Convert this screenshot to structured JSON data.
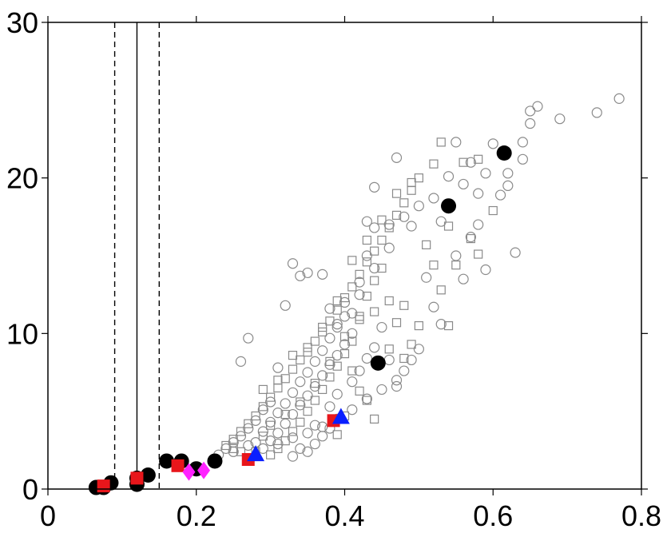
{
  "chart_data": {
    "type": "scatter",
    "xlim": [
      0,
      0.8
    ],
    "ylim": [
      0,
      30
    ],
    "x_ticks": [
      "0",
      "0.2",
      "0.4",
      "0.6",
      "0.8"
    ],
    "y_ticks": [
      "0",
      "10",
      "20",
      "30"
    ],
    "x_tick_values": [
      0,
      0.2,
      0.4,
      0.6,
      0.8
    ],
    "y_tick_values": [
      0,
      10,
      20,
      30
    ],
    "grid": false,
    "vertical_lines": [
      {
        "x": 0.09,
        "style": "dashed"
      },
      {
        "x": 0.12,
        "style": "solid"
      },
      {
        "x": 0.15,
        "style": "dashed"
      }
    ],
    "series": [
      {
        "marker": "open-circle",
        "color": "#8a8a8a",
        "points": [
          [
            0.23,
            2.2
          ],
          [
            0.24,
            2.6
          ],
          [
            0.25,
            3.0
          ],
          [
            0.26,
            3.4
          ],
          [
            0.27,
            3.9
          ],
          [
            0.28,
            4.4
          ],
          [
            0.29,
            5.1
          ],
          [
            0.3,
            5.6
          ],
          [
            0.3,
            3.1
          ],
          [
            0.31,
            3.6
          ],
          [
            0.32,
            4.2
          ],
          [
            0.33,
            4.8
          ],
          [
            0.34,
            5.4
          ],
          [
            0.35,
            6.0
          ],
          [
            0.36,
            6.6
          ],
          [
            0.37,
            7.3
          ],
          [
            0.38,
            8.0
          ],
          [
            0.39,
            8.6
          ],
          [
            0.4,
            9.3
          ],
          [
            0.41,
            10.0
          ],
          [
            0.26,
            8.2
          ],
          [
            0.27,
            9.7
          ],
          [
            0.31,
            7.8
          ],
          [
            0.32,
            11.8
          ],
          [
            0.33,
            14.5
          ],
          [
            0.34,
            13.7
          ],
          [
            0.35,
            13.9
          ],
          [
            0.37,
            13.8
          ],
          [
            0.38,
            11.6
          ],
          [
            0.39,
            10.6
          ],
          [
            0.4,
            12.0
          ],
          [
            0.41,
            11.3
          ],
          [
            0.42,
            12.5
          ],
          [
            0.42,
            13.3
          ],
          [
            0.43,
            15.0
          ],
          [
            0.44,
            14.2
          ],
          [
            0.43,
            17.2
          ],
          [
            0.44,
            16.8
          ],
          [
            0.44,
            19.4
          ],
          [
            0.46,
            17.0
          ],
          [
            0.46,
            15.5
          ],
          [
            0.47,
            21.3
          ],
          [
            0.48,
            17.5
          ],
          [
            0.49,
            16.9
          ],
          [
            0.5,
            18.2
          ],
          [
            0.51,
            13.6
          ],
          [
            0.52,
            18.7
          ],
          [
            0.53,
            17.2
          ],
          [
            0.54,
            20.1
          ],
          [
            0.55,
            22.3
          ],
          [
            0.56,
            19.6
          ],
          [
            0.57,
            21.0
          ],
          [
            0.57,
            16.2
          ],
          [
            0.58,
            19.0
          ],
          [
            0.59,
            20.3
          ],
          [
            0.6,
            22.2
          ],
          [
            0.62,
            20.3
          ],
          [
            0.63,
            15.2
          ],
          [
            0.64,
            21.2
          ],
          [
            0.64,
            22.3
          ],
          [
            0.65,
            24.3
          ],
          [
            0.65,
            23.5
          ],
          [
            0.66,
            24.6
          ],
          [
            0.69,
            23.8
          ],
          [
            0.74,
            24.2
          ],
          [
            0.77,
            25.1
          ],
          [
            0.35,
            2.4
          ],
          [
            0.36,
            2.9
          ],
          [
            0.37,
            3.4
          ],
          [
            0.38,
            3.9
          ],
          [
            0.33,
            2.1
          ],
          [
            0.34,
            2.6
          ],
          [
            0.36,
            4.1
          ],
          [
            0.38,
            5.3
          ],
          [
            0.39,
            6.1
          ],
          [
            0.41,
            6.9
          ],
          [
            0.42,
            7.6
          ],
          [
            0.43,
            8.4
          ],
          [
            0.44,
            9.1
          ],
          [
            0.45,
            10.4
          ],
          [
            0.46,
            8.3
          ],
          [
            0.47,
            6.6
          ],
          [
            0.28,
            3.0
          ],
          [
            0.29,
            3.7
          ],
          [
            0.3,
            4.3
          ],
          [
            0.31,
            4.9
          ],
          [
            0.32,
            5.5
          ],
          [
            0.33,
            6.2
          ],
          [
            0.34,
            6.9
          ],
          [
            0.35,
            7.5
          ],
          [
            0.36,
            8.2
          ],
          [
            0.37,
            8.9
          ],
          [
            0.38,
            9.7
          ],
          [
            0.39,
            10.4
          ],
          [
            0.4,
            11.1
          ],
          [
            0.25,
            2.4
          ],
          [
            0.27,
            2.8
          ],
          [
            0.29,
            2.6
          ],
          [
            0.31,
            2.9
          ],
          [
            0.33,
            3.3
          ],
          [
            0.35,
            3.6
          ],
          [
            0.37,
            4.0
          ],
          [
            0.39,
            4.5
          ],
          [
            0.41,
            5.1
          ],
          [
            0.43,
            5.8
          ],
          [
            0.45,
            6.4
          ],
          [
            0.47,
            7.0
          ],
          [
            0.48,
            7.6
          ],
          [
            0.49,
            8.3
          ],
          [
            0.5,
            9.0
          ],
          [
            0.52,
            11.7
          ],
          [
            0.53,
            10.6
          ],
          [
            0.55,
            15.0
          ],
          [
            0.56,
            13.5
          ],
          [
            0.58,
            17.0
          ],
          [
            0.59,
            14.1
          ],
          [
            0.61,
            18.9
          ],
          [
            0.62,
            19.5
          ]
        ]
      },
      {
        "marker": "open-square",
        "color": "#8a8a8a",
        "points": [
          [
            0.24,
            2.8
          ],
          [
            0.25,
            3.2
          ],
          [
            0.26,
            3.7
          ],
          [
            0.27,
            4.2
          ],
          [
            0.28,
            4.7
          ],
          [
            0.29,
            5.3
          ],
          [
            0.3,
            5.9
          ],
          [
            0.31,
            6.5
          ],
          [
            0.32,
            7.1
          ],
          [
            0.33,
            7.7
          ],
          [
            0.34,
            8.3
          ],
          [
            0.35,
            8.8
          ],
          [
            0.36,
            9.5
          ],
          [
            0.37,
            10.1
          ],
          [
            0.38,
            10.8
          ],
          [
            0.39,
            11.5
          ],
          [
            0.4,
            12.3
          ],
          [
            0.41,
            13.0
          ],
          [
            0.42,
            13.8
          ],
          [
            0.43,
            14.6
          ],
          [
            0.44,
            15.3
          ],
          [
            0.45,
            16.0
          ],
          [
            0.46,
            16.8
          ],
          [
            0.47,
            17.6
          ],
          [
            0.48,
            18.4
          ],
          [
            0.49,
            19.2
          ],
          [
            0.5,
            20.0
          ],
          [
            0.52,
            20.9
          ],
          [
            0.53,
            22.3
          ],
          [
            0.56,
            21.0
          ],
          [
            0.58,
            21.2
          ],
          [
            0.6,
            17.9
          ],
          [
            0.58,
            15.1
          ],
          [
            0.57,
            16.1
          ],
          [
            0.55,
            14.4
          ],
          [
            0.54,
            16.9
          ],
          [
            0.52,
            14.4
          ],
          [
            0.5,
            10.5
          ],
          [
            0.49,
            9.3
          ],
          [
            0.48,
            11.8
          ],
          [
            0.47,
            10.7
          ],
          [
            0.46,
            12.1
          ],
          [
            0.45,
            14.2
          ],
          [
            0.44,
            13.4
          ],
          [
            0.43,
            12.4
          ],
          [
            0.42,
            10.9
          ],
          [
            0.41,
            9.5
          ],
          [
            0.4,
            8.7
          ],
          [
            0.39,
            7.9
          ],
          [
            0.38,
            7.2
          ],
          [
            0.37,
            6.4
          ],
          [
            0.36,
            5.7
          ],
          [
            0.35,
            5.0
          ],
          [
            0.34,
            4.3
          ],
          [
            0.33,
            3.7
          ],
          [
            0.32,
            3.1
          ],
          [
            0.31,
            2.6
          ],
          [
            0.3,
            2.2
          ],
          [
            0.28,
            2.4
          ],
          [
            0.27,
            2.0
          ],
          [
            0.29,
            6.4
          ],
          [
            0.31,
            7.0
          ],
          [
            0.33,
            8.6
          ],
          [
            0.35,
            9.1
          ],
          [
            0.37,
            10.4
          ],
          [
            0.39,
            12.1
          ],
          [
            0.41,
            14.7
          ],
          [
            0.43,
            16.0
          ],
          [
            0.45,
            17.3
          ],
          [
            0.47,
            19.0
          ],
          [
            0.49,
            19.7
          ],
          [
            0.51,
            15.7
          ],
          [
            0.53,
            12.8
          ],
          [
            0.54,
            10.5
          ],
          [
            0.44,
            4.5
          ],
          [
            0.43,
            5.7
          ],
          [
            0.42,
            6.3
          ],
          [
            0.41,
            7.6
          ],
          [
            0.4,
            4.7
          ],
          [
            0.39,
            3.5
          ],
          [
            0.26,
            2.4
          ],
          [
            0.25,
            2.6
          ],
          [
            0.29,
            3.4
          ],
          [
            0.3,
            4.1
          ],
          [
            0.32,
            4.8
          ],
          [
            0.34,
            5.6
          ],
          [
            0.36,
            6.8
          ],
          [
            0.38,
            8.2
          ],
          [
            0.4,
            9.8
          ],
          [
            0.42,
            11.1
          ],
          [
            0.44,
            11.4
          ],
          [
            0.46,
            9.0
          ],
          [
            0.48,
            8.4
          ]
        ]
      },
      {
        "marker": "filled-circle",
        "color": "#000000",
        "points": [
          [
            0.065,
            0.1
          ],
          [
            0.075,
            0.1
          ],
          [
            0.085,
            0.4
          ],
          [
            0.12,
            0.3
          ],
          [
            0.12,
            0.7
          ],
          [
            0.135,
            0.9
          ],
          [
            0.16,
            1.8
          ],
          [
            0.18,
            1.8
          ],
          [
            0.2,
            1.3
          ],
          [
            0.225,
            1.8
          ],
          [
            0.445,
            8.1
          ],
          [
            0.54,
            18.2
          ],
          [
            0.615,
            21.6
          ]
        ]
      },
      {
        "marker": "filled-square",
        "color": "#e8161b",
        "points": [
          [
            0.075,
            0.2
          ],
          [
            0.12,
            0.7
          ],
          [
            0.175,
            1.5
          ],
          [
            0.27,
            1.9
          ],
          [
            0.385,
            4.4
          ]
        ]
      },
      {
        "marker": "filled-diamond",
        "color": "#ff22ff",
        "points": [
          [
            0.19,
            1.1
          ],
          [
            0.21,
            1.2
          ]
        ]
      },
      {
        "marker": "filled-triangle",
        "color": "#0a1fff",
        "points": [
          [
            0.28,
            2.2
          ],
          [
            0.395,
            4.6
          ]
        ]
      }
    ]
  },
  "colors": {
    "axis": "#000000",
    "reference_line": "#000000"
  }
}
